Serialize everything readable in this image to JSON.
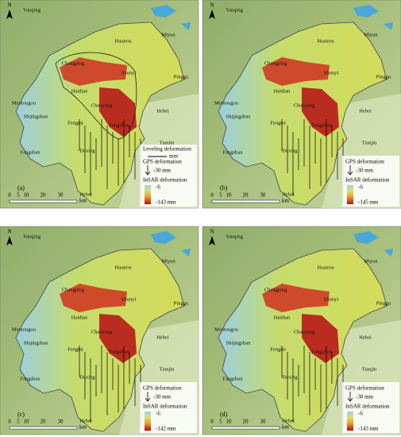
{
  "figure": {
    "places": [
      "Yanqing",
      "Huairou",
      "Miyun",
      "Pinggu",
      "Changping",
      "Shunyi",
      "Haidian",
      "Mentougou",
      "Shijingshan",
      "Chaoyang",
      "Fengtai",
      "Tongzhou",
      "Hebei",
      "Tianjin",
      "Fangshan",
      "Daxing",
      "Hebei"
    ],
    "north": "N",
    "scale": {
      "ticks": [
        "0",
        "5",
        "10",
        "20",
        "30"
      ],
      "unit": "km"
    },
    "panels": [
      {
        "label": "(a)",
        "leveling": "Leveling deformation",
        "leveling_unit": "mm",
        "gps": "GPS deformation",
        "gps_value": "-30 mm",
        "insar": "InSAR deformation",
        "insar_max": "-6",
        "insar_min": "-143 mm"
      },
      {
        "label": "(b)",
        "gps": "GPS deformation",
        "gps_value": "-30 mm",
        "insar": "InSAR deformation",
        "insar_max": "-6",
        "insar_min": "-145 mm"
      },
      {
        "label": "(c)",
        "gps": "GPS deformation",
        "gps_value": "-30 mm",
        "insar": "InSAR deformation",
        "insar_max": "-6",
        "insar_min": "-142 mm"
      },
      {
        "label": "(d)",
        "gps": "GPS deformation",
        "gps_value": "-30 mm",
        "insar": "InSAR deformation",
        "insar_max": "-6",
        "insar_min": "-143 mm"
      }
    ]
  }
}
